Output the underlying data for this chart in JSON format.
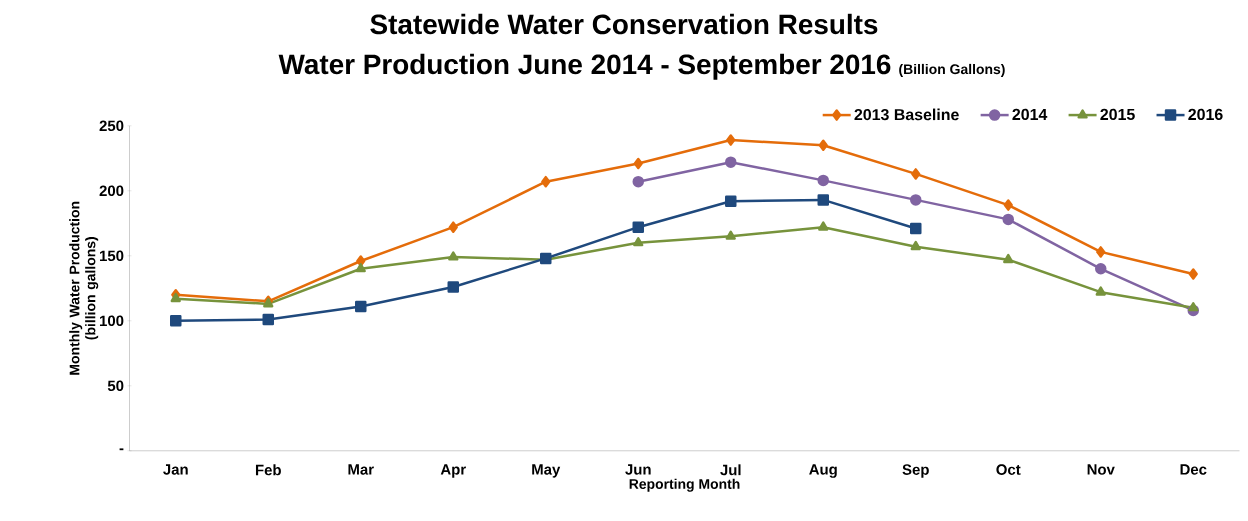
{
  "chart_data": {
    "type": "line",
    "title": "Statewide Water Conservation Results",
    "subtitle": "Water Production June 2014 - September 2016",
    "annotations": [
      "(Billion Gallons)"
    ],
    "xlabel": "Reporting Month",
    "ylabel": "Monthly Water Production (billion gallons)",
    "categories": [
      "Jan",
      "Feb",
      "Mar",
      "Apr",
      "May",
      "Jun",
      "Jul",
      "Aug",
      "Sep",
      "Oct",
      "Nov",
      "Dec"
    ],
    "series": [
      {
        "name": "2013 Baseline",
        "color": "#e46c0a",
        "marker": "diamond",
        "values": [
          120,
          115,
          146,
          172,
          207,
          221,
          239,
          235,
          213,
          189,
          153,
          136
        ]
      },
      {
        "name": "2014",
        "color": "#8064a2",
        "marker": "circle",
        "values": [
          null,
          null,
          null,
          null,
          null,
          207,
          222,
          208,
          193,
          178,
          140,
          108
        ]
      },
      {
        "name": "2015",
        "color": "#77933c",
        "marker": "triangle",
        "values": [
          117,
          113,
          140,
          149,
          147,
          160,
          165,
          172,
          157,
          147,
          122,
          110
        ]
      },
      {
        "name": "2016",
        "color": "#1f497d",
        "marker": "square",
        "values": [
          100,
          101,
          111,
          126,
          148,
          172,
          192,
          193,
          171,
          null,
          null,
          null
        ]
      }
    ],
    "ylim": [
      0,
      250
    ],
    "yticks": [
      {
        "value": 0,
        "label": "-"
      },
      50,
      100,
      150,
      200,
      250
    ],
    "legend": "top right"
  }
}
